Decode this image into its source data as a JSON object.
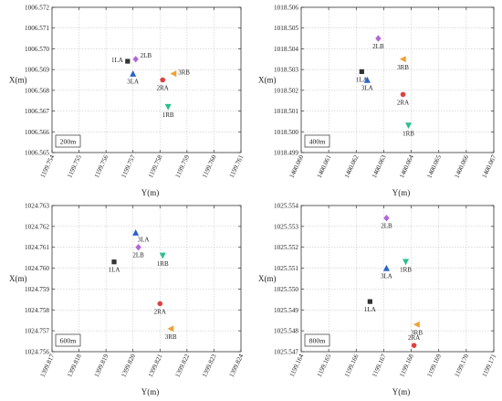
{
  "chart_data": [
    {
      "type": "scatter",
      "xlabel": "Y(m)",
      "ylabel": "X(m)",
      "annotation": "200m",
      "xlim": [
        1199.754,
        1199.761
      ],
      "ylim": [
        1006.565,
        1006.572
      ],
      "x_ticks": [
        1199.754,
        1199.755,
        1199.756,
        1199.757,
        1199.758,
        1199.759,
        1199.76,
        1199.761
      ],
      "x_tick_labels": [
        "1199.754",
        "1199.755",
        "1199.756",
        "1199.757",
        "1199.758",
        "1199.759",
        "1199.760",
        "1199.761"
      ],
      "y_ticks": [
        1006.565,
        1006.566,
        1006.567,
        1006.568,
        1006.569,
        1006.57,
        1006.571,
        1006.572
      ],
      "y_tick_labels": [
        "1006.565",
        "1006.566",
        "1006.567",
        "1006.568",
        "1006.569",
        "1006.570",
        "1006.571",
        "1006.572"
      ],
      "points": [
        {
          "label": "1LA",
          "marker": "square",
          "color": "#333333",
          "x": 1199.7568,
          "y": 1006.5694,
          "label_pos": "left"
        },
        {
          "label": "2LB",
          "marker": "diamond",
          "color": "#b266d6",
          "x": 1199.7571,
          "y": 1006.5695,
          "label_pos": "upper-right"
        },
        {
          "label": "3LA",
          "marker": "triangle-up",
          "color": "#2b62c9",
          "x": 1199.757,
          "y": 1006.5688,
          "label_pos": "below"
        },
        {
          "label": "3RB",
          "marker": "triangle-left",
          "color": "#f0a030",
          "x": 1199.7585,
          "y": 1006.5688,
          "label_pos": "right"
        },
        {
          "label": "2RA",
          "marker": "circle",
          "color": "#e04040",
          "x": 1199.7581,
          "y": 1006.5685,
          "label_pos": "below"
        },
        {
          "label": "1RB",
          "marker": "triangle-down",
          "color": "#2bbf8f",
          "x": 1199.7583,
          "y": 1006.5672,
          "label_pos": "below"
        }
      ]
    },
    {
      "type": "scatter",
      "xlabel": "Y(m)",
      "ylabel": "X(m)",
      "annotation": "400m",
      "xlim": [
        1400.06,
        1400.067
      ],
      "ylim": [
        1018.4995,
        1018.5065
      ],
      "x_ticks": [
        1400.06,
        1400.061,
        1400.062,
        1400.063,
        1400.064,
        1400.065,
        1400.066,
        1400.067
      ],
      "x_tick_labels": [
        "1400.060",
        "1400.061",
        "1400.062",
        "1400.063",
        "1400.064",
        "1400.065",
        "1400.066",
        "1400.067"
      ],
      "y_ticks": [
        1018.4995,
        1018.5005,
        1018.5015,
        1018.5025,
        1018.5035,
        1018.5045,
        1018.5055,
        1018.5065
      ],
      "y_tick_labels": [
        "1018.499",
        "1018.500",
        "1018.501",
        "1018.502",
        "1018.503",
        "1018.504",
        "1018.505",
        "1018.506"
      ],
      "points": [
        {
          "label": "2LB",
          "marker": "diamond",
          "color": "#b266d6",
          "x": 1400.0628,
          "y": 1018.505,
          "label_pos": "below"
        },
        {
          "label": "3RB",
          "marker": "triangle-left",
          "color": "#f0a030",
          "x": 1400.0637,
          "y": 1018.504,
          "label_pos": "below"
        },
        {
          "label": "1LA",
          "marker": "square",
          "color": "#333333",
          "x": 1400.0622,
          "y": 1018.5034,
          "label_pos": "below"
        },
        {
          "label": "3LA",
          "marker": "triangle-up",
          "color": "#2b62c9",
          "x": 1400.0624,
          "y": 1018.503,
          "label_pos": "below"
        },
        {
          "label": "2RA",
          "marker": "circle",
          "color": "#e04040",
          "x": 1400.0637,
          "y": 1018.5023,
          "label_pos": "below"
        },
        {
          "label": "1RB",
          "marker": "triangle-down",
          "color": "#2bbf8f",
          "x": 1400.0639,
          "y": 1018.5008,
          "label_pos": "below"
        }
      ]
    },
    {
      "type": "scatter",
      "xlabel": "Y(m)",
      "ylabel": "X(m)",
      "annotation": "600m",
      "xlim": [
        1399.817,
        1399.824
      ],
      "ylim": [
        1024.756,
        1024.763
      ],
      "x_ticks": [
        1399.817,
        1399.818,
        1399.819,
        1399.82,
        1399.821,
        1399.822,
        1399.823,
        1399.824
      ],
      "x_tick_labels": [
        "1399.817",
        "1399.818",
        "1399.819",
        "1399.820",
        "1399.821",
        "1399.822",
        "1399.823",
        "1399.824"
      ],
      "y_ticks": [
        1024.756,
        1024.757,
        1024.758,
        1024.759,
        1024.76,
        1024.761,
        1024.762,
        1024.763
      ],
      "y_tick_labels": [
        "1024.756",
        "1024.757",
        "1024.758",
        "1024.759",
        "1024.760",
        "1024.761",
        "1024.762",
        "1024.763"
      ],
      "points": [
        {
          "label": "3LA",
          "marker": "triangle-up",
          "color": "#2b62c9",
          "x": 1399.8201,
          "y": 1024.7617,
          "label_pos": "below-right"
        },
        {
          "label": "2LB",
          "marker": "diamond",
          "color": "#b266d6",
          "x": 1399.8202,
          "y": 1024.761,
          "label_pos": "below"
        },
        {
          "label": "1RB",
          "marker": "triangle-down",
          "color": "#2bbf8f",
          "x": 1399.8211,
          "y": 1024.7606,
          "label_pos": "below"
        },
        {
          "label": "1LA",
          "marker": "square",
          "color": "#333333",
          "x": 1399.8193,
          "y": 1024.7603,
          "label_pos": "below"
        },
        {
          "label": "2RA",
          "marker": "circle",
          "color": "#e04040",
          "x": 1399.821,
          "y": 1024.7583,
          "label_pos": "below"
        },
        {
          "label": "3RB",
          "marker": "triangle-left",
          "color": "#f0a030",
          "x": 1399.8214,
          "y": 1024.7571,
          "label_pos": "below"
        }
      ]
    },
    {
      "type": "scatter",
      "xlabel": "Y(m)",
      "ylabel": "X(m)",
      "annotation": "800m",
      "xlim": [
        1199.164,
        1199.171
      ],
      "ylim": [
        1025.547,
        1025.554
      ],
      "x_ticks": [
        1199.164,
        1199.165,
        1199.166,
        1199.167,
        1199.168,
        1199.169,
        1199.17,
        1199.171
      ],
      "x_tick_labels": [
        "1199.164",
        "1199.165",
        "1199.166",
        "1199.167",
        "1199.168",
        "1199.169",
        "1199.170",
        "1199.171"
      ],
      "y_ticks": [
        1025.547,
        1025.548,
        1025.549,
        1025.55,
        1025.551,
        1025.552,
        1025.553,
        1025.554
      ],
      "y_tick_labels": [
        "1025.547",
        "1025.548",
        "1025.549",
        "1025.550",
        "1025.551",
        "1025.552",
        "1025.553",
        "1025.554"
      ],
      "points": [
        {
          "label": "2LB",
          "marker": "diamond",
          "color": "#b266d6",
          "x": 1199.1671,
          "y": 1025.5534,
          "label_pos": "below"
        },
        {
          "label": "1RB",
          "marker": "triangle-down",
          "color": "#2bbf8f",
          "x": 1199.1678,
          "y": 1025.5513,
          "label_pos": "below"
        },
        {
          "label": "3LA",
          "marker": "triangle-up",
          "color": "#2b62c9",
          "x": 1199.1671,
          "y": 1025.551,
          "label_pos": "below"
        },
        {
          "label": "1LA",
          "marker": "square",
          "color": "#333333",
          "x": 1199.1665,
          "y": 1025.5494,
          "label_pos": "below"
        },
        {
          "label": "3RB",
          "marker": "triangle-left",
          "color": "#f0a030",
          "x": 1199.1682,
          "y": 1025.5483,
          "label_pos": "below"
        },
        {
          "label": "2RA",
          "marker": "circle",
          "color": "#e04040",
          "x": 1199.1681,
          "y": 1025.5473,
          "label_pos": "above"
        }
      ]
    }
  ]
}
